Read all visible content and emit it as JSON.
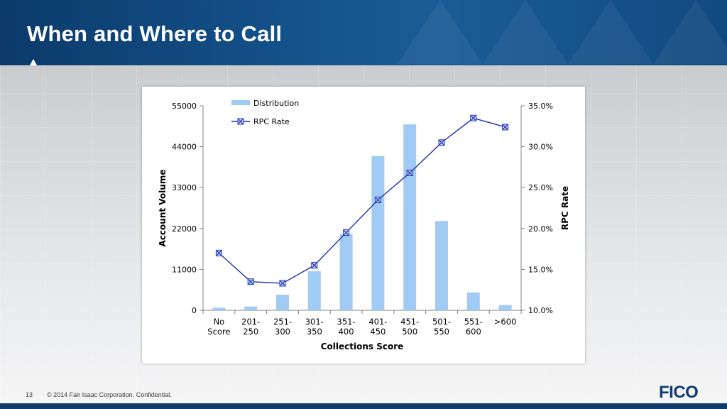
{
  "slide": {
    "title": "When and Where to Call",
    "page_number": "13",
    "copyright": "© 2014 Fair Isaac Corporation. Confidential.",
    "logo_text": "FICO",
    "colors": {
      "header": "#134f86",
      "footer": "#0e3c6c"
    }
  },
  "chart_data": {
    "type": "bar",
    "categories": [
      [
        "No",
        "Score"
      ],
      [
        "201-",
        "250"
      ],
      [
        "251-",
        "300"
      ],
      [
        "301-",
        "350"
      ],
      [
        "351-",
        "400"
      ],
      [
        "401-",
        "450"
      ],
      [
        "451-",
        "500"
      ],
      [
        "501-",
        "550"
      ],
      [
        "551-",
        "600"
      ],
      [
        ">600"
      ]
    ],
    "series": [
      {
        "name": "Distribution",
        "type": "bar",
        "axis": "left",
        "color": "#9fcbf5",
        "values": [
          700,
          1000,
          4200,
          10500,
          20500,
          41500,
          50000,
          24000,
          4800,
          1400
        ]
      },
      {
        "name": "RPC Rate",
        "type": "line",
        "axis": "right",
        "color": "#1f2fb0",
        "marker": "x-square",
        "values": [
          17.0,
          13.5,
          13.3,
          15.5,
          19.5,
          23.5,
          26.8,
          30.5,
          33.5,
          32.4
        ]
      }
    ],
    "xlabel": "Collections Score",
    "ylabel": "Account Volume",
    "y2label": "RPC Rate",
    "ylim": [
      0,
      55000
    ],
    "y2lim": [
      10,
      35
    ],
    "yticks": [
      "0",
      "11000",
      "22000",
      "33000",
      "44000",
      "55000"
    ],
    "y2ticks": [
      "10.0%",
      "15.0%",
      "20.0%",
      "25.0%",
      "30.0%",
      "35.0%"
    ],
    "legend_position": "top-left"
  }
}
